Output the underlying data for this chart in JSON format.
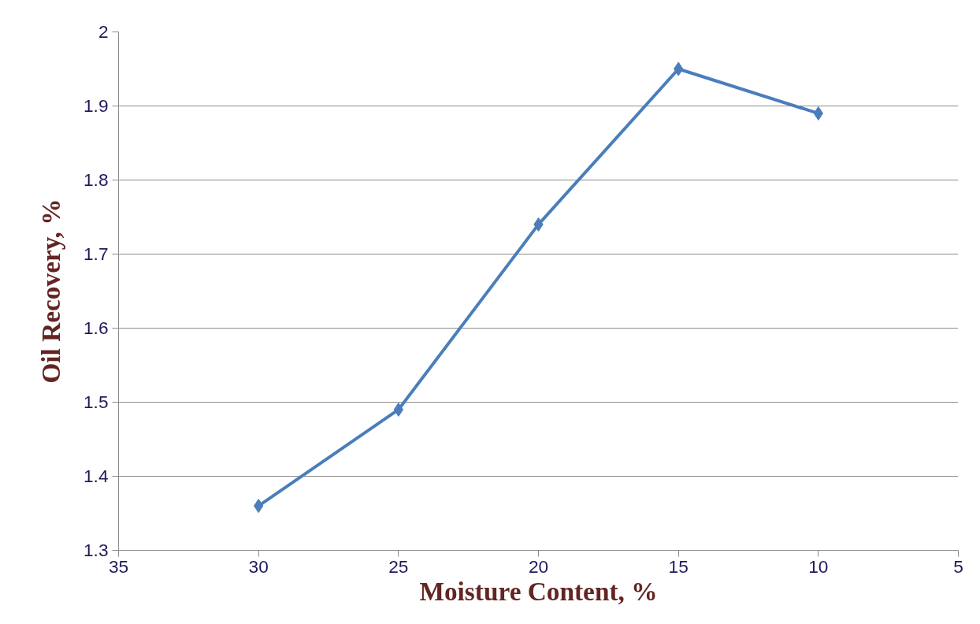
{
  "chart_data": {
    "type": "line",
    "xlabel": "Moisture Content, %",
    "ylabel": "Oil Recovery, %",
    "x": [
      30,
      25,
      20,
      15,
      10
    ],
    "series": [
      {
        "color": "#4a7ebb",
        "values": [
          1.36,
          1.49,
          1.74,
          1.95,
          1.89
        ]
      }
    ],
    "xlim": [
      35,
      5
    ],
    "xticks": [
      35,
      30,
      25,
      20,
      15,
      10,
      5
    ],
    "ylim": [
      1.3,
      2
    ],
    "yticks": [
      1.3,
      1.4,
      1.5,
      1.6,
      1.7,
      1.8,
      1.9,
      2
    ],
    "grid": "y",
    "marker": "diamond",
    "line_style": "solid"
  }
}
